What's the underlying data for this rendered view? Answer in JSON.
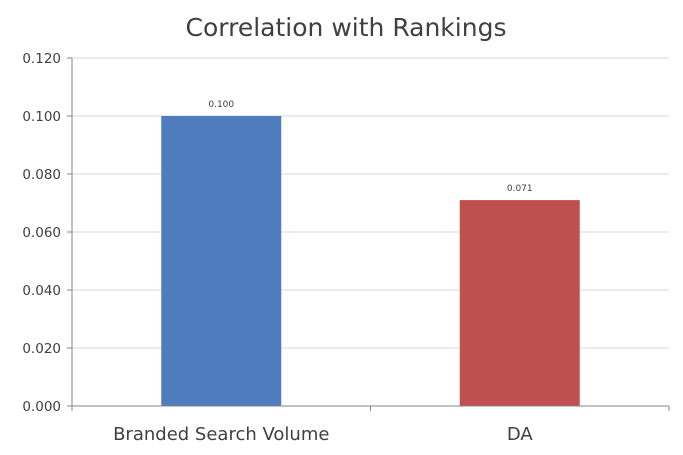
{
  "chart_data": {
    "type": "bar",
    "title": "Correlation with Rankings",
    "xlabel": "",
    "ylabel": "",
    "categories": [
      "Branded Search Volume",
      "DA"
    ],
    "values": [
      0.1,
      0.071
    ],
    "data_labels": [
      "0.100",
      "0.071"
    ],
    "bar_colors": [
      "#4f7cbd",
      "#c0504d"
    ],
    "ylim": [
      0,
      0.12
    ],
    "yticks": [
      0.0,
      0.02,
      0.04,
      0.06,
      0.08,
      0.1,
      0.12
    ],
    "ytick_labels": [
      "0.000",
      "0.020",
      "0.040",
      "0.060",
      "0.080",
      "0.100",
      "0.120"
    ],
    "grid": true,
    "legend": "none"
  }
}
